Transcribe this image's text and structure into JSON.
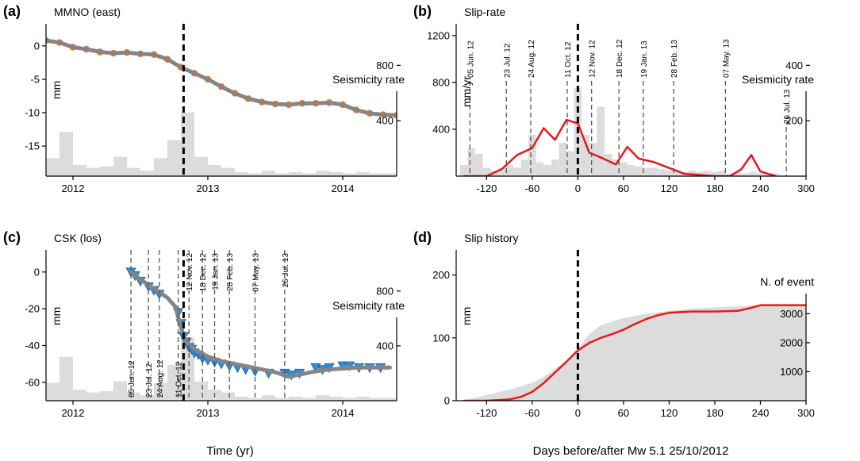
{
  "colors": {
    "scatter_orange": "#ff6a13",
    "fit_gray": "#858585",
    "histogram_gray": "#dcdcdc",
    "triangle_blue": "#2f8fd6",
    "triangle_edge": "#1a5f9a",
    "line_red": "#e41a1c",
    "axis_black": "#000000"
  },
  "xlabels": {
    "left": "Time (yr)",
    "right": "Days before/after Mw 5.1 25/10/2012"
  },
  "chart_data": [
    {
      "id": "a",
      "type": "scatter",
      "panel_letter": "(a)",
      "title": "MMNO (east)",
      "ylabel": "mm",
      "secondary_ylabel": "Seismicity rate",
      "xlim": [
        2011.8,
        2014.4
      ],
      "ylim": [
        -19.5,
        3.3
      ],
      "secondary_ylim": [
        0,
        1100
      ],
      "x_ticks": [
        2012,
        2013,
        2014
      ],
      "x_tick_labels": [
        "2012",
        "2013",
        "2014"
      ],
      "y_ticks": [
        0,
        -5,
        -10,
        -15
      ],
      "y_tick_labels": [
        "0",
        "-5",
        "-10",
        "-15"
      ],
      "secondary_ticks": [
        400,
        800
      ],
      "secondary_tick_labels": [
        "400",
        "800"
      ],
      "event_line_x": 2012.82,
      "series": [
        {
          "role": "gps observations",
          "style": "orange dots",
          "x": [
            2011.8,
            2011.9,
            2012.0,
            2012.1,
            2012.2,
            2012.3,
            2012.4,
            2012.5,
            2012.6,
            2012.7,
            2012.8,
            2012.9,
            2013.0,
            2013.1,
            2013.2,
            2013.3,
            2013.4,
            2013.5,
            2013.6,
            2013.7,
            2013.8,
            2013.9,
            2014.0,
            2014.1,
            2014.2,
            2014.3,
            2014.4
          ],
          "y": [
            0.8,
            0.5,
            -0.2,
            -0.5,
            -0.9,
            -1.1,
            -1.0,
            -1.2,
            -1.3,
            -2.0,
            -3.2,
            -4.1,
            -5.0,
            -6.1,
            -7.1,
            -7.9,
            -8.4,
            -8.7,
            -8.8,
            -8.6,
            -8.6,
            -8.5,
            -8.8,
            -9.6,
            -10.1,
            -10.3,
            -10.4
          ]
        },
        {
          "role": "model fit",
          "style": "thick gray line",
          "x": [
            2011.8,
            2011.9,
            2012.0,
            2012.1,
            2012.2,
            2012.3,
            2012.4,
            2012.5,
            2012.6,
            2012.7,
            2012.8,
            2012.9,
            2013.0,
            2013.1,
            2013.2,
            2013.3,
            2013.4,
            2013.5,
            2013.6,
            2013.7,
            2013.8,
            2013.9,
            2014.0,
            2014.1,
            2014.2,
            2014.3,
            2014.4
          ],
          "y": [
            0.8,
            0.5,
            -0.2,
            -0.5,
            -0.9,
            -1.1,
            -1.0,
            -1.2,
            -1.3,
            -2.0,
            -3.2,
            -4.1,
            -5.0,
            -6.1,
            -7.1,
            -7.9,
            -8.4,
            -8.7,
            -8.8,
            -8.6,
            -8.6,
            -8.5,
            -8.8,
            -9.6,
            -10.1,
            -10.3,
            -10.4
          ]
        },
        {
          "role": "seismicity rate",
          "style": "gray histogram",
          "axis": "secondary",
          "x": [
            2011.85,
            2011.95,
            2012.05,
            2012.15,
            2012.25,
            2012.35,
            2012.45,
            2012.55,
            2012.65,
            2012.75,
            2012.85,
            2012.95,
            2013.05,
            2013.15,
            2013.25,
            2013.35,
            2013.45,
            2013.55,
            2013.65,
            2013.75,
            2013.85,
            2013.95,
            2014.05,
            2014.15,
            2014.25,
            2014.35
          ],
          "y": [
            130,
            320,
            80,
            60,
            70,
            140,
            60,
            40,
            130,
            260,
            460,
            140,
            80,
            60,
            30,
            20,
            40,
            20,
            30,
            20,
            40,
            30,
            20,
            30,
            20,
            20
          ]
        }
      ]
    },
    {
      "id": "b",
      "type": "line",
      "panel_letter": "(b)",
      "title": "Slip-rate",
      "ylabel": "mm/yr",
      "secondary_ylabel": "Seismicity rate",
      "xlim": [
        -160,
        300
      ],
      "ylim": [
        0,
        1300
      ],
      "secondary_ylim": [
        0,
        550
      ],
      "x_ticks": [
        -120,
        -60,
        0,
        60,
        120,
        180,
        240,
        300
      ],
      "x_tick_labels": [
        "-120",
        "-60",
        "0",
        "60",
        "120",
        "180",
        "240",
        "300"
      ],
      "y_ticks": [
        400,
        800,
        1200
      ],
      "y_tick_labels": [
        "400",
        "800",
        "1200"
      ],
      "secondary_ticks": [
        200,
        400
      ],
      "secondary_tick_labels": [
        "200",
        "400"
      ],
      "event_line_x": 0,
      "acquisitions": [
        {
          "x": -142,
          "label": "05 Jun. 12"
        },
        {
          "x": -94,
          "label": "23 Jul. 12"
        },
        {
          "x": -62,
          "label": "24 Aug. 12"
        },
        {
          "x": -14,
          "label": "11 Oct. 12"
        },
        {
          "x": 18,
          "label": "12 Nov. 12"
        },
        {
          "x": 54,
          "label": "18 Dec. 12"
        },
        {
          "x": 86,
          "label": "19 Jan. 13"
        },
        {
          "x": 126,
          "label": "28 Feb. 13"
        },
        {
          "x": 194,
          "label": "07 May. 13"
        },
        {
          "x": 274,
          "label": "26 Jul. 13"
        }
      ],
      "series": [
        {
          "role": "slip rate",
          "style": "red line",
          "x": [
            -150,
            -120,
            -100,
            -80,
            -60,
            -45,
            -30,
            -15,
            0,
            15,
            30,
            50,
            65,
            80,
            100,
            120,
            140,
            160,
            180,
            200,
            215,
            228,
            240,
            260
          ],
          "y": [
            0,
            0,
            60,
            180,
            240,
            410,
            310,
            480,
            450,
            200,
            160,
            100,
            250,
            150,
            120,
            70,
            20,
            10,
            0,
            0,
            60,
            180,
            40,
            0
          ]
        },
        {
          "role": "seismicity rate",
          "style": "gray histogram",
          "axis": "secondary",
          "x": [
            -150,
            -140,
            -130,
            -120,
            -110,
            -100,
            -90,
            -80,
            -70,
            -60,
            -50,
            -40,
            -30,
            -20,
            -10,
            0,
            10,
            20,
            30,
            40,
            50,
            60,
            70,
            80,
            90,
            100,
            110,
            120,
            130,
            140,
            150,
            160,
            170,
            180,
            190,
            200,
            210,
            220,
            230,
            240,
            250,
            260
          ],
          "y": [
            40,
            100,
            80,
            30,
            20,
            30,
            40,
            30,
            60,
            150,
            50,
            40,
            60,
            120,
            90,
            320,
            150,
            120,
            250,
            80,
            60,
            50,
            40,
            35,
            30,
            30,
            25,
            20,
            20,
            15,
            20,
            15,
            20,
            15,
            20,
            10,
            15,
            10,
            15,
            10,
            10,
            10
          ]
        }
      ]
    },
    {
      "id": "c",
      "type": "scatter",
      "panel_letter": "(c)",
      "title": "CSK (los)",
      "ylabel": "mm",
      "secondary_ylabel": "Seismicity rate",
      "xlim": [
        2011.8,
        2014.4
      ],
      "ylim": [
        -70,
        12
      ],
      "secondary_ylim": [
        0,
        1100
      ],
      "x_ticks": [
        2012,
        2013,
        2014
      ],
      "x_tick_labels": [
        "2012",
        "2013",
        "2014"
      ],
      "y_ticks": [
        0,
        -20,
        -40,
        -60
      ],
      "y_tick_labels": [
        "0",
        "-20",
        "-40",
        "-60"
      ],
      "secondary_ticks": [
        400,
        800
      ],
      "secondary_tick_labels": [
        "400",
        "800"
      ],
      "event_line_x": 2012.82,
      "acquisitions": [
        {
          "x": 2012.43,
          "label": "05 Jun. 12"
        },
        {
          "x": 2012.56,
          "label": "23 Jul. 12"
        },
        {
          "x": 2012.64,
          "label": "24 Aug. 12"
        },
        {
          "x": 2012.78,
          "label": "11 Oct. 12"
        },
        {
          "x": 2012.86,
          "label": "12 Nov. 12"
        },
        {
          "x": 2012.96,
          "label": "18 Dec. 12"
        },
        {
          "x": 2013.05,
          "label": "19 Jan. 13"
        },
        {
          "x": 2013.16,
          "label": "28 Feb. 13"
        },
        {
          "x": 2013.35,
          "label": "07 May. 13"
        },
        {
          "x": 2013.57,
          "label": "26 Jul. 13"
        }
      ],
      "series": [
        {
          "role": "insar observations",
          "style": "blue triangles",
          "x": [
            2012.43,
            2012.46,
            2012.5,
            2012.56,
            2012.6,
            2012.64,
            2012.78,
            2012.8,
            2012.82,
            2012.84,
            2012.86,
            2012.88,
            2012.9,
            2012.93,
            2012.96,
            2013.0,
            2013.05,
            2013.1,
            2013.16,
            2013.22,
            2013.28,
            2013.35,
            2013.45,
            2013.57,
            2013.62,
            2013.68,
            2013.8,
            2013.85,
            2013.9,
            2014.0,
            2014.05,
            2014.12,
            2014.2,
            2014.28
          ],
          "y": [
            0,
            -2,
            -5,
            -8,
            -10,
            -12,
            -22,
            -28,
            -35,
            -38,
            -41,
            -42,
            -44,
            -45,
            -47,
            -48,
            -49,
            -50,
            -51,
            -52,
            -53,
            -54,
            -55,
            -55,
            -56,
            -55,
            -52,
            -53,
            -52,
            -51,
            -51,
            -52,
            -52,
            -52
          ]
        },
        {
          "role": "model fit",
          "style": "thick gray line",
          "x": [
            2012.43,
            2012.5,
            2012.6,
            2012.7,
            2012.76,
            2012.8,
            2012.84,
            2012.9,
            2013.0,
            2013.1,
            2013.2,
            2013.3,
            2013.4,
            2013.5,
            2013.6,
            2013.7,
            2013.8,
            2013.9,
            2014.0,
            2014.1,
            2014.2,
            2014.35
          ],
          "y": [
            0,
            -4,
            -9,
            -14,
            -19,
            -30,
            -38,
            -42,
            -46,
            -48.5,
            -50,
            -51.5,
            -53,
            -54.5,
            -57,
            -55.5,
            -54,
            -53,
            -52.5,
            -52,
            -52,
            -52
          ]
        },
        {
          "role": "seismicity rate",
          "style": "gray histogram",
          "axis": "secondary",
          "x": [
            2011.85,
            2011.95,
            2012.05,
            2012.15,
            2012.25,
            2012.35,
            2012.45,
            2012.55,
            2012.65,
            2012.75,
            2012.85,
            2012.95,
            2013.05,
            2013.15,
            2013.25,
            2013.35,
            2013.45,
            2013.55,
            2013.65,
            2013.75,
            2013.85,
            2013.95,
            2014.05,
            2014.15,
            2014.25,
            2014.35
          ],
          "y": [
            130,
            320,
            80,
            60,
            70,
            140,
            60,
            40,
            130,
            260,
            460,
            140,
            80,
            60,
            30,
            20,
            40,
            20,
            30,
            20,
            40,
            30,
            20,
            30,
            20,
            20
          ]
        }
      ]
    },
    {
      "id": "d",
      "type": "line",
      "panel_letter": "(d)",
      "title": "Slip history",
      "ylabel": "mm",
      "secondary_ylabel": "N. of event",
      "xlim": [
        -160,
        300
      ],
      "ylim": [
        0,
        240
      ],
      "secondary_ylim": [
        0,
        5200
      ],
      "x_ticks": [
        -120,
        -60,
        0,
        60,
        120,
        180,
        240,
        300
      ],
      "x_tick_labels": [
        "-120",
        "-60",
        "0",
        "60",
        "120",
        "180",
        "240",
        "300"
      ],
      "y_ticks": [
        0,
        100,
        200
      ],
      "y_tick_labels": [
        "0",
        "100",
        "200"
      ],
      "secondary_ticks": [
        1000,
        2000,
        3000
      ],
      "secondary_tick_labels": [
        "1000",
        "2000",
        "3000"
      ],
      "event_line_x": 0,
      "series": [
        {
          "role": "cumulative slip",
          "style": "red line",
          "x": [
            -150,
            -120,
            -90,
            -75,
            -60,
            -45,
            -30,
            -15,
            0,
            15,
            30,
            45,
            60,
            75,
            90,
            105,
            120,
            150,
            180,
            210,
            225,
            240,
            255,
            300
          ],
          "y": [
            0,
            0,
            2,
            6,
            14,
            28,
            45,
            62,
            80,
            92,
            100,
            106,
            113,
            122,
            130,
            136,
            140,
            142,
            142,
            143,
            147,
            152,
            152,
            152
          ]
        },
        {
          "role": "cumulative number of events",
          "style": "gray filled area",
          "axis": "secondary",
          "x": [
            -150,
            -120,
            -90,
            -60,
            -45,
            -30,
            -15,
            0,
            15,
            30,
            60,
            90,
            120,
            150,
            180,
            210,
            240,
            270,
            300
          ],
          "y": [
            0,
            200,
            380,
            620,
            820,
            1100,
            1400,
            1800,
            2300,
            2600,
            2850,
            3000,
            3100,
            3180,
            3220,
            3260,
            3300,
            3320,
            3330
          ]
        }
      ]
    }
  ]
}
